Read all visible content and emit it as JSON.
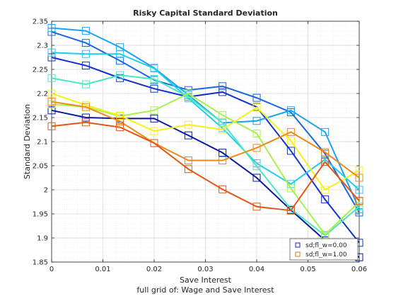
{
  "chart_data": {
    "type": "line",
    "title": "Risky Capital Standard Deviation",
    "xlabel": "Save Interest",
    "ylabel": "Standard Deviation",
    "caption": "full grid of: Wage and Save Interest",
    "xlim": [
      0,
      0.06
    ],
    "ylim": [
      1.85,
      2.35
    ],
    "x_ticks": [
      0,
      0.01,
      0.02,
      0.03,
      0.04,
      0.05,
      0.06
    ],
    "x_tick_labels": [
      "0",
      "0.01",
      "0.02",
      "0.03",
      "0.04",
      "0.05",
      "0.06"
    ],
    "y_ticks": [
      1.85,
      1.9,
      1.95,
      2.0,
      2.05,
      2.1,
      2.15,
      2.2,
      2.25,
      2.3,
      2.35
    ],
    "y_tick_labels": [
      "1.85",
      "1.9",
      "1.95",
      "2",
      "2.05",
      "2.1",
      "2.15",
      "2.2",
      "2.25",
      "2.3",
      "2.35"
    ],
    "grid": true,
    "minor_grid": true,
    "legend_position": "bottom-right",
    "legend": [
      {
        "label": "sd;fl_w=0.00",
        "color": "#1f1fb4"
      },
      {
        "label": "sd;fl_w=1.00",
        "color": "#e8761e"
      }
    ],
    "x": [
      0,
      0.00667,
      0.01333,
      0.02,
      0.02667,
      0.03333,
      0.04,
      0.04667,
      0.05333,
      0.06
    ],
    "series": [
      {
        "color": "#0a1a9c",
        "values": [
          2.165,
          2.15,
          2.148,
          2.148,
          2.113,
          2.077,
          2.025,
          1.958,
          1.895,
          1.86
        ]
      },
      {
        "color": "#1533c8",
        "values": [
          2.275,
          2.258,
          2.232,
          2.21,
          2.193,
          2.203,
          2.172,
          2.081,
          1.98,
          1.89
        ]
      },
      {
        "color": "#1a66e0",
        "values": [
          2.328,
          2.305,
          2.268,
          2.228,
          2.207,
          2.215,
          2.191,
          2.161,
          2.075,
          1.953
        ]
      },
      {
        "color": "#1aa2ee",
        "values": [
          2.336,
          2.33,
          2.296,
          2.253,
          2.197,
          2.139,
          2.143,
          2.165,
          2.12,
          1.96
        ]
      },
      {
        "color": "#22ccee",
        "values": [
          2.285,
          2.282,
          2.282,
          2.252,
          2.19,
          2.128,
          2.055,
          2.012,
          2.063,
          2.0
        ]
      },
      {
        "color": "#4de6c0",
        "values": [
          2.232,
          2.219,
          2.238,
          2.23,
          2.193,
          2.139,
          2.049,
          1.96,
          1.905,
          1.965
        ]
      },
      {
        "color": "#a8f050",
        "values": [
          2.178,
          2.172,
          2.153,
          2.165,
          2.2,
          2.155,
          2.117,
          2.003,
          1.907,
          1.975
        ]
      },
      {
        "color": "#f4f020",
        "values": [
          2.2,
          2.176,
          2.154,
          2.122,
          2.135,
          2.125,
          2.171,
          2.102,
          2.0,
          2.04
        ]
      },
      {
        "color": "#f08818",
        "values": [
          2.183,
          2.172,
          2.142,
          2.097,
          2.061,
          2.061,
          2.087,
          2.12,
          2.078,
          2.025
        ]
      },
      {
        "color": "#e05818",
        "values": [
          2.132,
          2.14,
          2.13,
          2.097,
          2.043,
          2.001,
          1.965,
          1.957,
          2.058,
          1.977
        ]
      }
    ]
  }
}
